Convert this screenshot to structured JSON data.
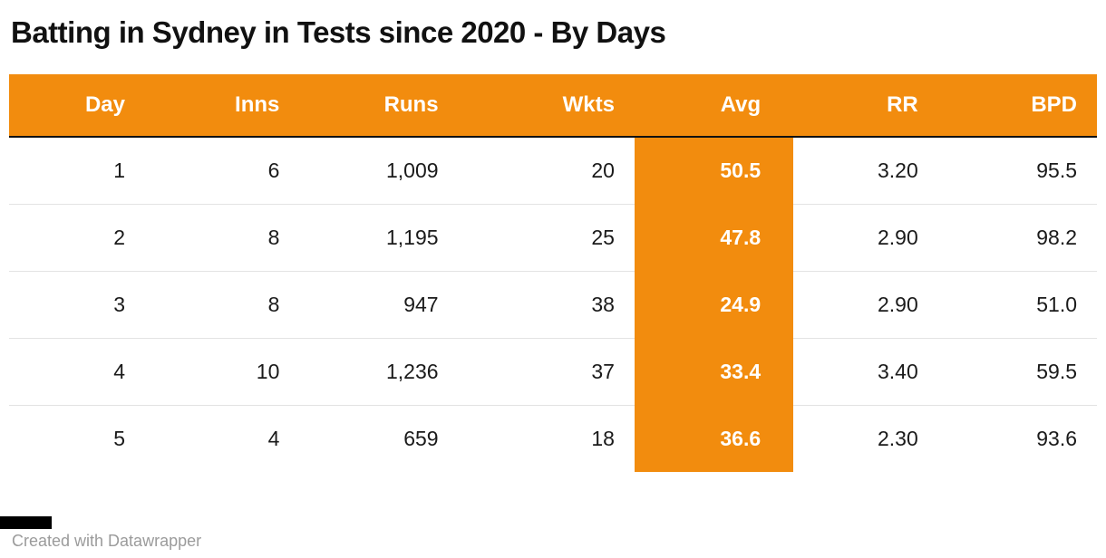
{
  "title": "Batting in Sydney in Tests since 2020 - By Days",
  "footer": {
    "credit": "Created with Datawrapper"
  },
  "colors": {
    "accent": "#F28C0E",
    "header_text": "#FFFFFF",
    "highlight_text": "#FFFFFF",
    "body_text": "#1A1A1A",
    "credit_text": "#9B9B9B"
  },
  "chart_data": {
    "type": "table",
    "title": "Batting in Sydney in Tests since 2020 - By Days",
    "columns": [
      "Day",
      "Inns",
      "Runs",
      "Wkts",
      "Avg",
      "RR",
      "BPD"
    ],
    "highlight_column": "Avg",
    "rows": [
      [
        "1",
        "6",
        "1,009",
        "20",
        "50.5",
        "3.20",
        "95.5"
      ],
      [
        "2",
        "8",
        "1,195",
        "25",
        "47.8",
        "2.90",
        "98.2"
      ],
      [
        "3",
        "8",
        "947",
        "38",
        "24.9",
        "2.90",
        "51.0"
      ],
      [
        "4",
        "10",
        "1,236",
        "37",
        "33.4",
        "3.40",
        "59.5"
      ],
      [
        "5",
        "4",
        "659",
        "18",
        "36.6",
        "2.30",
        "93.6"
      ]
    ]
  }
}
